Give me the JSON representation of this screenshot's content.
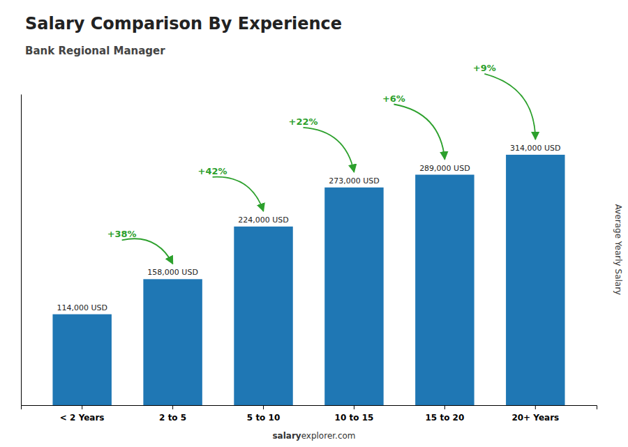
{
  "chart_data": {
    "type": "bar",
    "title": "Salary Comparison By Experience",
    "subtitle": "Bank Regional Manager",
    "categories": [
      "< 2 Years",
      "2 to 5",
      "5 to 10",
      "10 to 15",
      "15 to 20",
      "20+ Years"
    ],
    "values": [
      114000,
      158000,
      224000,
      273000,
      289000,
      314000
    ],
    "value_labels": [
      "114,000 USD",
      "158,000 USD",
      "224,000 USD",
      "273,000 USD",
      "289,000 USD",
      "314,000 USD"
    ],
    "data_labels": true,
    "annotations": [
      null,
      "+38%",
      "+42%",
      "+22%",
      "+6%",
      "+9%"
    ],
    "ylabel": "Average Yearly Salary",
    "ylim": [
      0,
      390000
    ],
    "tick_labels": "x",
    "grid": false,
    "footer": [
      "salary",
      "explorer.com"
    ]
  }
}
